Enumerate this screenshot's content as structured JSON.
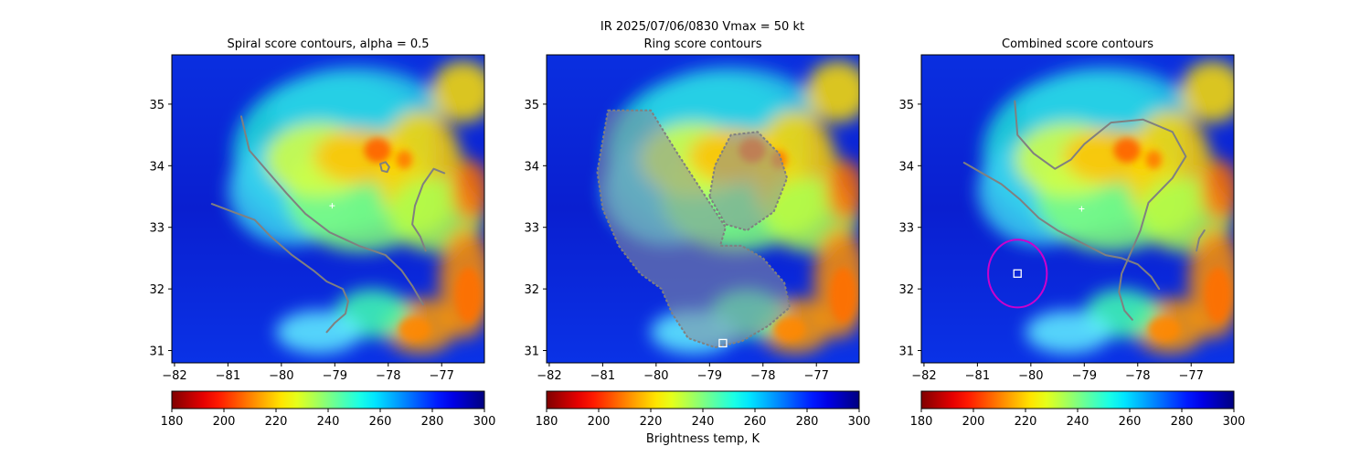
{
  "suptitle": "IR  2025/07/06/0830    Vmax = 50 kt",
  "colors": {
    "contour": "#808080",
    "marker": "#ffffff",
    "circle": "#cc00cc"
  },
  "chart_data": [
    {
      "type": "heatmap",
      "title": "Spiral score contours, alpha =  0.5",
      "xlim": [
        -82.05,
        -76.2
      ],
      "ylim": [
        30.8,
        35.8
      ],
      "x_ticks": [
        -82,
        -81,
        -80,
        -79,
        -78,
        -77
      ],
      "y_ticks": [
        31,
        32,
        33,
        34,
        35
      ],
      "series": [
        {
          "type": "contour",
          "points": [
            [
              -81.3,
              33.38
            ],
            [
              -80.9,
              33.25
            ],
            [
              -80.5,
              33.12
            ],
            [
              -80.2,
              32.85
            ],
            [
              -79.8,
              32.55
            ],
            [
              -79.4,
              32.3
            ],
            [
              -79.15,
              32.12
            ],
            [
              -78.85,
              32.0
            ],
            [
              -78.75,
              31.8
            ],
            [
              -78.8,
              31.6
            ],
            [
              -79.0,
              31.45
            ],
            [
              -79.15,
              31.3
            ]
          ]
        },
        {
          "type": "contour",
          "points": [
            [
              -80.75,
              34.8
            ],
            [
              -80.6,
              34.25
            ],
            [
              -80.25,
              33.9
            ],
            [
              -79.9,
              33.55
            ],
            [
              -79.55,
              33.22
            ],
            [
              -79.1,
              32.92
            ],
            [
              -78.55,
              32.7
            ],
            [
              -78.05,
              32.55
            ],
            [
              -77.75,
              32.3
            ],
            [
              -77.55,
              32.05
            ],
            [
              -77.35,
              31.75
            ]
          ]
        },
        {
          "type": "contour",
          "points": [
            [
              -76.95,
              33.88
            ],
            [
              -77.15,
              33.95
            ],
            [
              -77.35,
              33.7
            ],
            [
              -77.5,
              33.35
            ],
            [
              -77.55,
              33.05
            ],
            [
              -77.4,
              32.85
            ],
            [
              -77.3,
              32.62
            ]
          ]
        },
        {
          "type": "contour",
          "closed": true,
          "points": [
            [
              -78.15,
              34.03
            ],
            [
              -78.05,
              34.06
            ],
            [
              -77.98,
              33.98
            ],
            [
              -78.02,
              33.9
            ],
            [
              -78.12,
              33.92
            ]
          ]
        }
      ],
      "markers": [
        {
          "x": -79.05,
          "y": 33.35,
          "symbol": "+"
        }
      ]
    },
    {
      "type": "heatmap",
      "title": "Ring score contours",
      "xlim": [
        -82.05,
        -76.2
      ],
      "ylim": [
        30.8,
        35.8
      ],
      "x_ticks": [
        -82,
        -81,
        -80,
        -79,
        -78,
        -77
      ],
      "y_ticks": [
        31,
        32,
        33,
        34,
        35
      ],
      "series": [
        {
          "type": "contour_region",
          "points": [
            [
              -80.9,
              34.9
            ],
            [
              -80.1,
              34.9
            ],
            [
              -79.6,
              34.2
            ],
            [
              -79.3,
              33.8
            ],
            [
              -79.0,
              33.4
            ],
            [
              -78.7,
              33.0
            ],
            [
              -78.8,
              32.7
            ],
            [
              -78.4,
              32.7
            ],
            [
              -78.0,
              32.5
            ],
            [
              -77.6,
              32.1
            ],
            [
              -77.5,
              31.7
            ],
            [
              -77.9,
              31.4
            ],
            [
              -78.4,
              31.15
            ],
            [
              -78.9,
              31.05
            ],
            [
              -79.4,
              31.2
            ],
            [
              -79.7,
              31.6
            ],
            [
              -79.9,
              32.0
            ],
            [
              -80.3,
              32.25
            ],
            [
              -80.7,
              32.7
            ],
            [
              -81.0,
              33.3
            ],
            [
              -81.1,
              33.9
            ]
          ]
        },
        {
          "type": "contour_region",
          "points": [
            [
              -79.0,
              33.5
            ],
            [
              -78.9,
              34.0
            ],
            [
              -78.6,
              34.5
            ],
            [
              -78.1,
              34.55
            ],
            [
              -77.7,
              34.2
            ],
            [
              -77.55,
              33.8
            ],
            [
              -77.8,
              33.25
            ],
            [
              -78.3,
              32.95
            ],
            [
              -78.7,
              33.05
            ]
          ]
        }
      ],
      "markers": [
        {
          "x": -78.75,
          "y": 31.12,
          "symbol": "square"
        }
      ]
    },
    {
      "type": "heatmap",
      "title": "Combined score contours",
      "xlim": [
        -82.05,
        -76.2
      ],
      "ylim": [
        30.8,
        35.8
      ],
      "x_ticks": [
        -82,
        -81,
        -80,
        -79,
        -78,
        -77
      ],
      "y_ticks": [
        31,
        32,
        33,
        34,
        35
      ],
      "series": [
        {
          "type": "contour",
          "points": [
            [
              -81.25,
              34.05
            ],
            [
              -80.95,
              33.9
            ],
            [
              -80.55,
              33.7
            ],
            [
              -80.2,
              33.45
            ],
            [
              -79.85,
              33.15
            ],
            [
              -79.5,
              32.95
            ],
            [
              -79.05,
              32.75
            ],
            [
              -78.6,
              32.55
            ],
            [
              -78.3,
              32.5
            ],
            [
              -78.0,
              32.4
            ],
            [
              -77.75,
              32.2
            ],
            [
              -77.6,
              32.0
            ]
          ]
        },
        {
          "type": "contour",
          "points": [
            [
              -80.3,
              35.05
            ],
            [
              -80.25,
              34.5
            ],
            [
              -79.95,
              34.2
            ],
            [
              -79.55,
              33.95
            ],
            [
              -79.25,
              34.1
            ],
            [
              -79.0,
              34.35
            ],
            [
              -78.5,
              34.7
            ],
            [
              -77.9,
              34.75
            ],
            [
              -77.35,
              34.55
            ],
            [
              -77.1,
              34.15
            ],
            [
              -77.35,
              33.8
            ],
            [
              -77.8,
              33.4
            ],
            [
              -77.95,
              32.95
            ],
            [
              -78.15,
              32.55
            ],
            [
              -78.3,
              32.25
            ],
            [
              -78.35,
              31.95
            ],
            [
              -78.25,
              31.65
            ],
            [
              -78.1,
              31.5
            ]
          ]
        },
        {
          "type": "contour",
          "points": [
            [
              -76.75,
              32.95
            ],
            [
              -76.85,
              32.82
            ],
            [
              -76.9,
              32.62
            ]
          ]
        }
      ],
      "markers": [
        {
          "x": -79.05,
          "y": 33.3,
          "symbol": "+"
        },
        {
          "x": -80.25,
          "y": 32.25,
          "symbol": "square"
        },
        {
          "x": -80.25,
          "y": 32.25,
          "symbol": "circle",
          "radius_deg": 0.55
        }
      ]
    }
  ],
  "colorbars": [
    {
      "ticks": [
        180,
        200,
        220,
        240,
        260,
        280,
        300
      ],
      "range": [
        180,
        300
      ],
      "label": ""
    },
    {
      "ticks": [
        180,
        200,
        220,
        240,
        260,
        280,
        300
      ],
      "range": [
        180,
        300
      ],
      "label": "Brightness temp, K"
    },
    {
      "ticks": [
        180,
        200,
        220,
        240,
        260,
        280,
        300
      ],
      "range": [
        180,
        300
      ],
      "label": ""
    }
  ],
  "colormap": "jet_r"
}
